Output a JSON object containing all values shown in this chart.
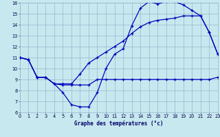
{
  "xlabel": "Graphe des températures (°c)",
  "background_color": "#c8e8f0",
  "grid_color": "#90b8c8",
  "line_color": "#0000bb",
  "xlim": [
    0,
    23
  ],
  "ylim": [
    6,
    16
  ],
  "xticks": [
    0,
    1,
    2,
    3,
    4,
    5,
    6,
    7,
    8,
    9,
    10,
    11,
    12,
    13,
    14,
    15,
    16,
    17,
    18,
    19,
    20,
    21,
    22,
    23
  ],
  "yticks": [
    6,
    7,
    8,
    9,
    10,
    11,
    12,
    13,
    14,
    15,
    16
  ],
  "curve1_x": [
    0,
    1,
    2,
    3,
    4,
    5,
    6,
    7,
    8,
    9,
    10,
    11,
    12,
    13,
    14,
    15,
    16,
    17,
    18,
    19,
    20,
    21,
    22,
    23
  ],
  "curve1_y": [
    11.0,
    10.8,
    9.2,
    9.2,
    8.6,
    7.8,
    6.7,
    6.5,
    6.5,
    7.8,
    10.0,
    11.3,
    11.8,
    13.9,
    15.5,
    16.1,
    15.9,
    16.1,
    16.1,
    15.8,
    15.3,
    14.8,
    13.3,
    11.3
  ],
  "curve2_x": [
    0,
    1,
    2,
    3,
    4,
    5,
    6,
    7,
    8,
    9,
    10,
    11,
    12,
    13,
    14,
    15,
    16,
    17,
    18,
    19,
    20,
    21,
    22,
    23
  ],
  "curve2_y": [
    11.0,
    10.8,
    9.2,
    9.2,
    8.6,
    8.5,
    8.5,
    8.5,
    8.5,
    9.0,
    9.0,
    9.0,
    9.0,
    9.0,
    9.0,
    9.0,
    9.0,
    9.0,
    9.0,
    9.0,
    9.0,
    9.0,
    9.0,
    9.2
  ],
  "curve3_x": [
    0,
    1,
    2,
    3,
    4,
    5,
    6,
    7,
    8,
    9,
    10,
    11,
    12,
    13,
    14,
    15,
    16,
    17,
    18,
    19,
    20,
    21,
    22,
    23
  ],
  "curve3_y": [
    11.0,
    10.8,
    9.2,
    9.2,
    8.6,
    8.6,
    8.6,
    9.5,
    10.5,
    11.0,
    11.5,
    12.0,
    12.5,
    13.2,
    13.8,
    14.2,
    14.4,
    14.5,
    14.6,
    14.8,
    14.8,
    14.8,
    13.3,
    11.3
  ],
  "tick_fontsize": 4.8,
  "xlabel_fontsize": 5.5,
  "xlabel_bold": true,
  "marker_size": 2.5,
  "linewidth": 0.9
}
